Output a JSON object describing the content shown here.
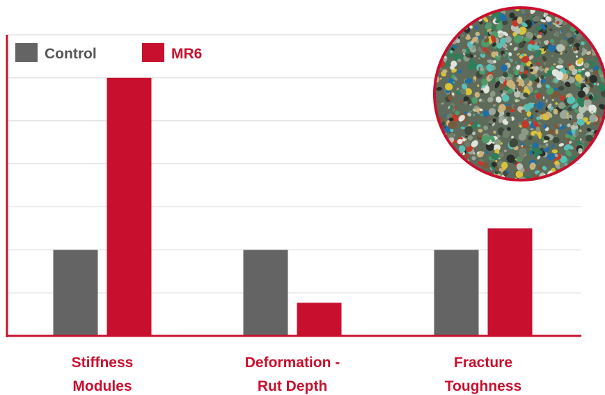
{
  "chart_data": {
    "type": "bar",
    "title": "",
    "xlabel": "",
    "ylabel": "",
    "categories": [
      [
        "Stiffness",
        "Modules"
      ],
      [
        "Deformation -",
        "Rut Depth"
      ],
      [
        "Fracture",
        "Toughness"
      ]
    ],
    "series": [
      {
        "name": "Control",
        "color": "#646464",
        "values": [
          2,
          2,
          2
        ]
      },
      {
        "name": "MR6",
        "color": "#c8102e",
        "values": [
          6,
          0.77,
          2.5
        ]
      }
    ],
    "ylim": [
      0,
      7
    ],
    "y_tick_step": 1,
    "y_tick_labels_shown": false,
    "grid": true,
    "legend_placement": "top-left",
    "label_color": "#c8102e",
    "legend_colors": {
      "Control": "#555555",
      "MR6": "#c8102e"
    },
    "inset_image": "recycled-plastic-granules-photo"
  }
}
